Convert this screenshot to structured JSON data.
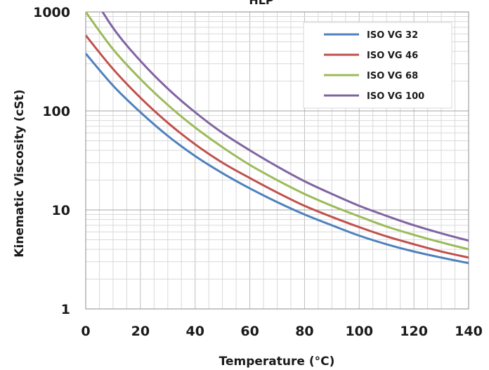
{
  "chart_data": {
    "type": "line",
    "title": "HLP",
    "xlabel": "Temperature (°C)",
    "ylabel": "Kinematic Viscosity (cSt)",
    "xlim": [
      0,
      140
    ],
    "ylim": [
      1,
      1000
    ],
    "yscale": "log",
    "grid": true,
    "legend_position": "top-right",
    "x_ticks": [
      "0",
      "20",
      "40",
      "60",
      "80",
      "100",
      "120",
      "140"
    ],
    "y_ticks": [
      "1",
      "10",
      "100",
      "1000"
    ],
    "x": [
      0,
      10,
      20,
      30,
      40,
      50,
      60,
      70,
      80,
      90,
      100,
      110,
      120,
      130,
      140
    ],
    "series": [
      {
        "name": "ISO VG 32",
        "color": "#4f81bd",
        "values": [
          380,
          180,
          97,
          56,
          35,
          23.5,
          16.5,
          12.0,
          9.0,
          7.0,
          5.5,
          4.5,
          3.8,
          3.3,
          2.9
        ]
      },
      {
        "name": "ISO VG 46",
        "color": "#c0504d",
        "values": [
          580,
          265,
          136,
          76,
          46,
          30,
          21,
          15,
          11.0,
          8.5,
          6.7,
          5.4,
          4.5,
          3.8,
          3.3
        ]
      },
      {
        "name": "ISO VG 68",
        "color": "#9bbb59",
        "values": [
          1000,
          420,
          210,
          115,
          68,
          43,
          28.5,
          20,
          14.5,
          11.0,
          8.6,
          6.8,
          5.6,
          4.7,
          4.0
        ]
      },
      {
        "name": "ISO VG 100",
        "color": "#8064a2",
        "values": [
          1900,
          690,
          320,
          168,
          97,
          60,
          40,
          27.5,
          19.5,
          14.5,
          11.0,
          8.7,
          7.0,
          5.8,
          4.9
        ]
      }
    ]
  }
}
